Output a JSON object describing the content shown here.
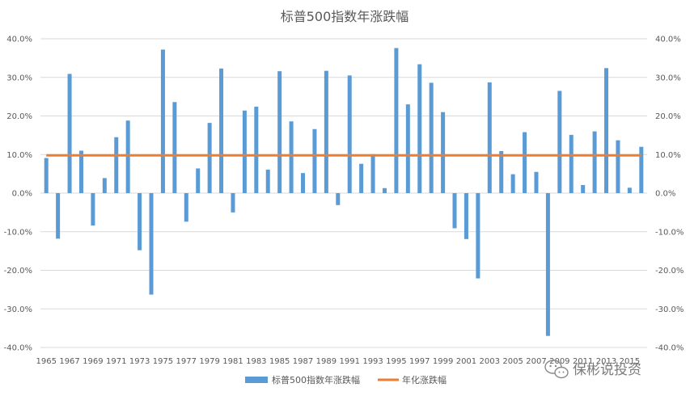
{
  "chart_data": {
    "type": "bar",
    "title": "标普500指数年涨跌幅",
    "xlabel": "",
    "ylabel": "",
    "ylim": [
      -40,
      40
    ],
    "y_ticks": [
      "-40.0%",
      "-30.0%",
      "-20.0%",
      "-10.0%",
      "0.0%",
      "10.0%",
      "20.0%",
      "30.0%",
      "40.0%"
    ],
    "y_tick_values": [
      -40,
      -30,
      -20,
      -10,
      0,
      10,
      20,
      30,
      40
    ],
    "categories": [
      "1965",
      "1966",
      "1967",
      "1968",
      "1969",
      "1970",
      "1971",
      "1972",
      "1973",
      "1974",
      "1975",
      "1976",
      "1977",
      "1978",
      "1979",
      "1980",
      "1981",
      "1982",
      "1983",
      "1984",
      "1985",
      "1986",
      "1987",
      "1988",
      "1989",
      "1990",
      "1991",
      "1992",
      "1993",
      "1994",
      "1995",
      "1996",
      "1997",
      "1998",
      "1999",
      "2000",
      "2001",
      "2002",
      "2003",
      "2004",
      "2005",
      "2006",
      "2007",
      "2008",
      "2009",
      "2010",
      "2011",
      "2012",
      "2013",
      "2014",
      "2015",
      "2016"
    ],
    "x_tick_labels": [
      "1965",
      "1967",
      "1969",
      "1971",
      "1973",
      "1975",
      "1977",
      "1979",
      "1981",
      "1983",
      "1985",
      "1987",
      "1989",
      "1991",
      "1993",
      "1995",
      "1997",
      "1999",
      "2001",
      "2003",
      "2005",
      "2007",
      "2009",
      "2011",
      "2013",
      "2015"
    ],
    "series": [
      {
        "name": "标普500指数年涨跌幅",
        "type": "bar",
        "color": "#5b9bd5",
        "values": [
          9.1,
          -11.8,
          30.9,
          11.0,
          -8.4,
          3.9,
          14.5,
          18.8,
          -14.8,
          -26.3,
          37.2,
          23.6,
          -7.4,
          6.4,
          18.2,
          32.3,
          -5.0,
          21.4,
          22.4,
          6.1,
          31.6,
          18.6,
          5.2,
          16.6,
          31.7,
          -3.1,
          30.5,
          7.6,
          10.1,
          1.3,
          37.6,
          23.0,
          33.4,
          28.6,
          21.0,
          -9.1,
          -11.9,
          -22.1,
          28.7,
          10.9,
          4.9,
          15.8,
          5.5,
          -37.0,
          26.5,
          15.1,
          2.1,
          16.0,
          32.4,
          13.7,
          1.4,
          12.0
        ]
      },
      {
        "name": "年化涨跌幅",
        "type": "line",
        "color": "#ed7d31",
        "values": [
          9.8,
          9.8,
          9.8,
          9.8,
          9.8,
          9.8,
          9.8,
          9.8,
          9.8,
          9.8,
          9.8,
          9.8,
          9.8,
          9.8,
          9.8,
          9.8,
          9.8,
          9.8,
          9.8,
          9.8,
          9.8,
          9.8,
          9.8,
          9.8,
          9.8,
          9.8,
          9.8,
          9.8,
          9.8,
          9.8,
          9.8,
          9.8,
          9.8,
          9.8,
          9.8,
          9.8,
          9.8,
          9.8,
          9.8,
          9.8,
          9.8,
          9.8,
          9.8,
          9.8,
          9.8,
          9.8,
          9.8,
          9.8,
          9.8,
          9.8,
          9.8,
          9.8
        ]
      }
    ],
    "legend": {
      "position": "bottom",
      "items": [
        "标普500指数年涨跌幅",
        "年化涨跌幅"
      ]
    },
    "grid": true
  },
  "watermark": {
    "text": "保彬说投资",
    "icon": "wechat-icon"
  }
}
